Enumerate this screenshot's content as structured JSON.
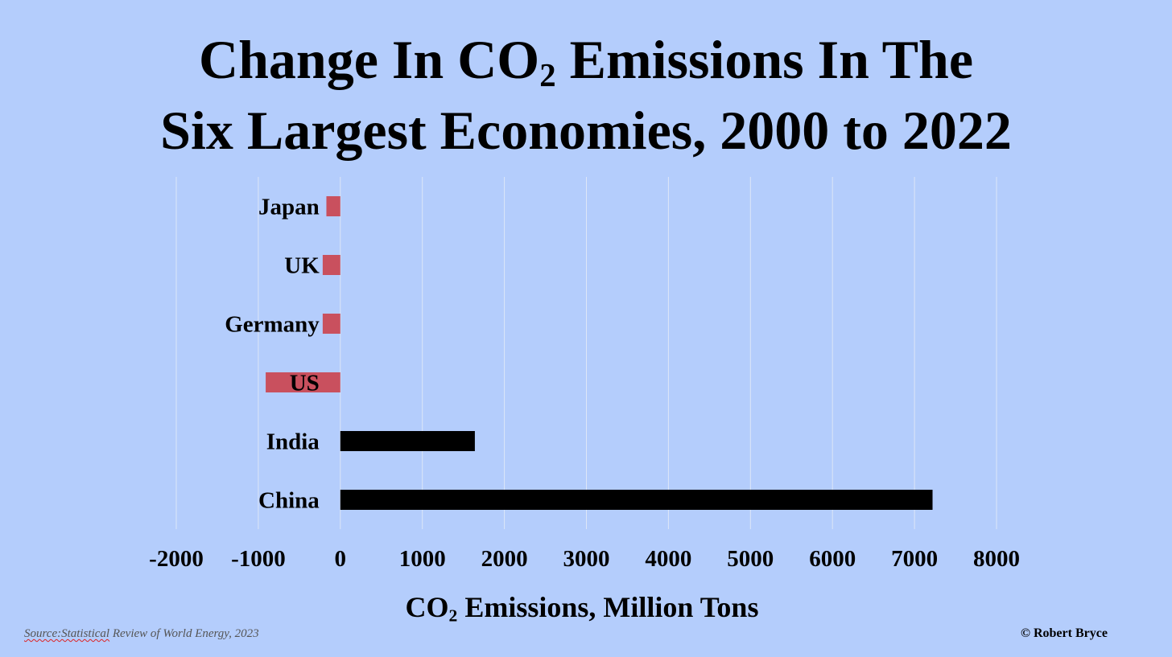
{
  "chart_data": {
    "type": "bar",
    "orientation": "horizontal",
    "title": {
      "line1_prefix": "Change In CO",
      "line1_sub": "2",
      "line1_suffix": " Emissions In The",
      "line2": "Six Largest Economies, 2000 to 2022"
    },
    "categories": [
      "Japan",
      "UK",
      "Germany",
      "US",
      "India",
      "China"
    ],
    "values": [
      -170,
      -215,
      -215,
      -910,
      1640,
      7220
    ],
    "bar_colors": [
      "#c9505e",
      "#c9505e",
      "#c9505e",
      "#c9505e",
      "#000000",
      "#000000"
    ],
    "xlim": [
      -2000,
      8000
    ],
    "x_ticks": [
      "-2000",
      "-1000",
      "0",
      "1000",
      "2000",
      "3000",
      "4000",
      "5000",
      "6000",
      "7000",
      "8000"
    ],
    "xlabel": {
      "prefix": "CO",
      "sub": "2",
      "suffix": " Emissions, Million Tons"
    },
    "grid": "vertical",
    "legend": "none"
  },
  "source": {
    "underlined": "Source:Statistical",
    "rest": " Review of World Energy, 2023"
  },
  "copyright": "© Robert Bryce",
  "colors": {
    "background": "#b4cdfc",
    "negative_bar": "#c9505e",
    "positive_bar": "#000000",
    "gridline": "#dde6f7"
  }
}
